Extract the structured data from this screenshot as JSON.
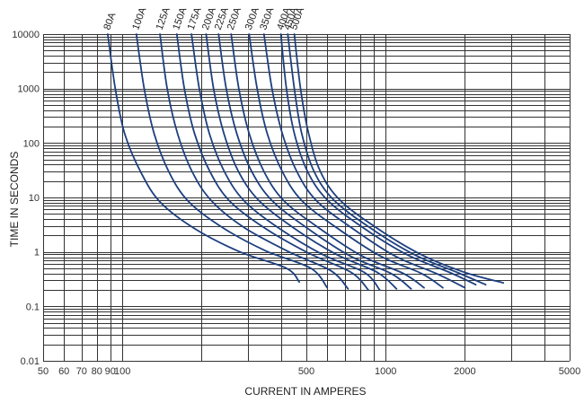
{
  "chart_data": {
    "type": "line",
    "title": "",
    "xlabel": "CURRENT IN AMPERES",
    "ylabel": "TIME IN SECONDS",
    "xscale": "log",
    "yscale": "log",
    "xlim": [
      50,
      5000
    ],
    "ylim": [
      0.01,
      10000
    ],
    "grid": true,
    "x_tick_labels": [
      {
        "value": 50,
        "label": "50"
      },
      {
        "value": 60,
        "label": "60"
      },
      {
        "value": 70,
        "label": "70"
      },
      {
        "value": 80,
        "label": "80"
      },
      {
        "value": 90,
        "label": "90"
      },
      {
        "value": 100,
        "label": "100"
      },
      {
        "value": 500,
        "label": "500"
      },
      {
        "value": 1000,
        "label": "1000"
      },
      {
        "value": 2000,
        "label": "2000"
      },
      {
        "value": 5000,
        "label": "5000"
      }
    ],
    "y_tick_labels": [
      {
        "value": 0.01,
        "label": "0.01"
      },
      {
        "value": 0.1,
        "label": "0.1"
      },
      {
        "value": 1,
        "label": "1"
      },
      {
        "value": 10,
        "label": "10"
      },
      {
        "value": 100,
        "label": "100"
      },
      {
        "value": 1000,
        "label": "1000"
      },
      {
        "value": 10000,
        "label": "10000"
      }
    ],
    "line_color": "#1d3f7e",
    "series": [
      {
        "name": "80A",
        "points": [
          [
            88,
            10000
          ],
          [
            94,
            1000
          ],
          [
            102,
            150
          ],
          [
            118,
            28
          ],
          [
            140,
            8
          ],
          [
            190,
            2.6
          ],
          [
            280,
            1
          ],
          [
            420,
            0.5
          ],
          [
            470,
            0.28
          ]
        ]
      },
      {
        "name": "100A",
        "points": [
          [
            113,
            10000
          ],
          [
            121,
            1000
          ],
          [
            132,
            150
          ],
          [
            150,
            30
          ],
          [
            178,
            8.5
          ],
          [
            240,
            2.8
          ],
          [
            350,
            1.05
          ],
          [
            520,
            0.5
          ],
          [
            600,
            0.22
          ]
        ]
      },
      {
        "name": "125A",
        "points": [
          [
            139,
            10000
          ],
          [
            148,
            1000
          ],
          [
            162,
            150
          ],
          [
            184,
            30
          ],
          [
            218,
            8.7
          ],
          [
            290,
            2.8
          ],
          [
            430,
            1
          ],
          [
            620,
            0.45
          ],
          [
            720,
            0.21
          ]
        ]
      },
      {
        "name": "150A",
        "points": [
          [
            161,
            10000
          ],
          [
            172,
            1000
          ],
          [
            188,
            150
          ],
          [
            215,
            30
          ],
          [
            255,
            8.7
          ],
          [
            345,
            2.8
          ],
          [
            510,
            0.95
          ],
          [
            740,
            0.42
          ],
          [
            860,
            0.2
          ]
        ]
      },
      {
        "name": "175A",
        "points": [
          [
            183,
            10000
          ],
          [
            196,
            1000
          ],
          [
            214,
            150
          ],
          [
            244,
            30
          ],
          [
            290,
            8.7
          ],
          [
            390,
            2.8
          ],
          [
            575,
            0.9
          ],
          [
            830,
            0.42
          ],
          [
            950,
            0.2
          ]
        ]
      },
      {
        "name": "200A",
        "points": [
          [
            208,
            10000
          ],
          [
            222,
            1000
          ],
          [
            243,
            150
          ],
          [
            276,
            30
          ],
          [
            330,
            8.8
          ],
          [
            445,
            2.8
          ],
          [
            650,
            0.9
          ],
          [
            930,
            0.42
          ],
          [
            1100,
            0.21
          ]
        ]
      },
      {
        "name": "225A",
        "points": [
          [
            232,
            10000
          ],
          [
            248,
            1000
          ],
          [
            272,
            150
          ],
          [
            310,
            30
          ],
          [
            370,
            8.8
          ],
          [
            500,
            2.8
          ],
          [
            730,
            0.85
          ],
          [
            1050,
            0.4
          ],
          [
            1250,
            0.21
          ]
        ]
      },
      {
        "name": "250A",
        "points": [
          [
            259,
            10000
          ],
          [
            277,
            1000
          ],
          [
            303,
            150
          ],
          [
            345,
            30
          ],
          [
            410,
            8.8
          ],
          [
            555,
            2.8
          ],
          [
            810,
            0.85
          ],
          [
            1170,
            0.4
          ],
          [
            1400,
            0.22
          ]
        ]
      },
      {
        "name": "300A",
        "points": [
          [
            303,
            10000
          ],
          [
            325,
            1000
          ],
          [
            355,
            150
          ],
          [
            405,
            30
          ],
          [
            480,
            8.8
          ],
          [
            650,
            2.8
          ],
          [
            950,
            0.85
          ],
          [
            1370,
            0.4
          ],
          [
            1650,
            0.22
          ]
        ]
      },
      {
        "name": "350A",
        "points": [
          [
            345,
            10000
          ],
          [
            370,
            1000
          ],
          [
            405,
            150
          ],
          [
            460,
            30
          ],
          [
            545,
            8.8
          ],
          [
            740,
            2.8
          ],
          [
            1080,
            0.85
          ],
          [
            1560,
            0.4
          ],
          [
            2000,
            0.22
          ]
        ]
      },
      {
        "name": "400A",
        "points": [
          [
            400,
            10000
          ],
          [
            420,
            1000
          ],
          [
            450,
            150
          ],
          [
            505,
            30
          ],
          [
            600,
            9
          ],
          [
            820,
            2.8
          ],
          [
            1200,
            0.9
          ],
          [
            1750,
            0.42
          ],
          [
            2200,
            0.25
          ]
        ]
      },
      {
        "name": "450A",
        "points": [
          [
            425,
            10000
          ],
          [
            450,
            1000
          ],
          [
            480,
            150
          ],
          [
            535,
            30
          ],
          [
            635,
            9
          ],
          [
            870,
            2.8
          ],
          [
            1280,
            0.9
          ],
          [
            1870,
            0.42
          ],
          [
            2400,
            0.25
          ]
        ]
      },
      {
        "name": "500A",
        "points": [
          [
            450,
            10000
          ],
          [
            475,
            1000
          ],
          [
            510,
            150
          ],
          [
            565,
            30
          ],
          [
            670,
            9
          ],
          [
            920,
            2.8
          ],
          [
            1360,
            0.9
          ],
          [
            2000,
            0.42
          ],
          [
            2800,
            0.27
          ]
        ]
      }
    ]
  }
}
